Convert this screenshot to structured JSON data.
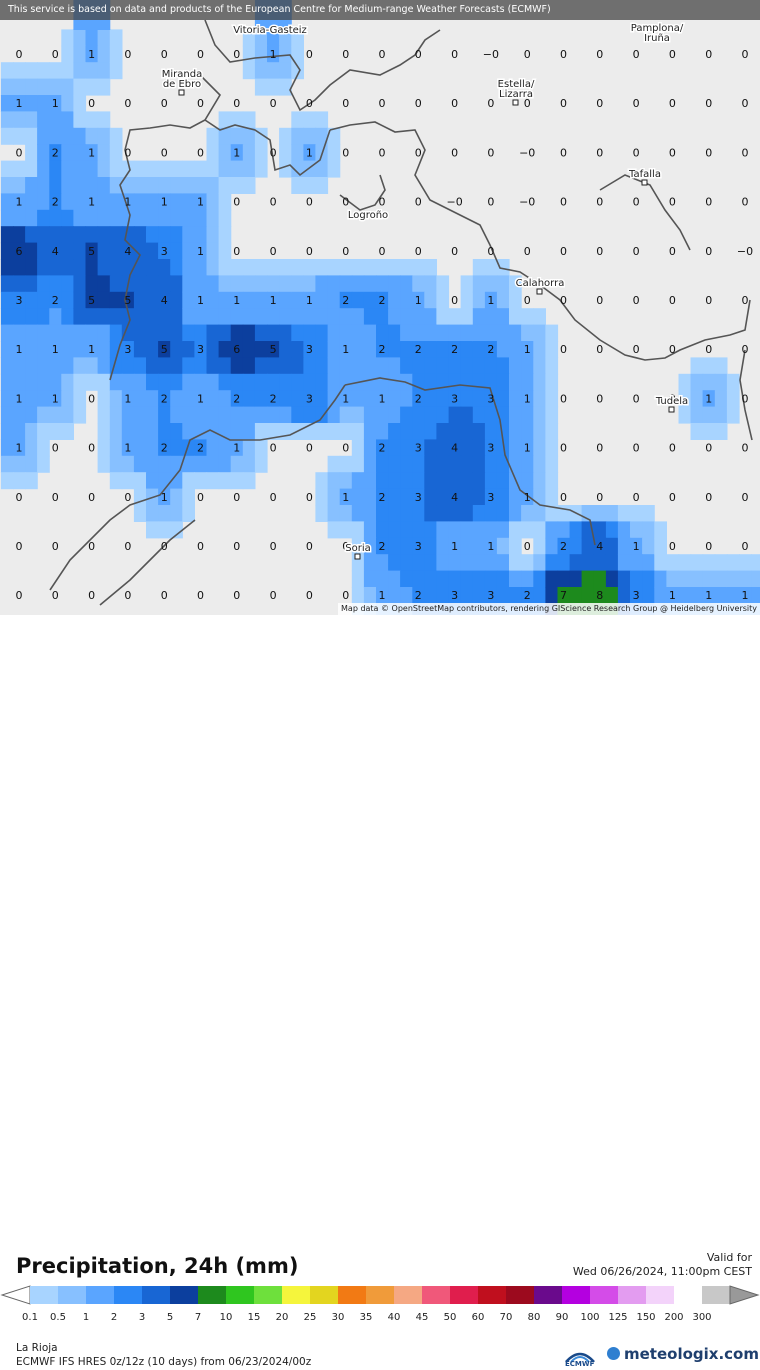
{
  "banner_text": "This service is based on data and products of the European Centre for Medium-range Weather Forecasts (ECMWF)",
  "attribution": "Map data © OpenStreetMap contributors, rendering GIScience Research Group @ Heidelberg University",
  "title": "Precipitation, 24h (mm)",
  "valid_label": "Valid for",
  "valid_date": "Wed 06/26/2024, 11:00pm CEST",
  "region": "La Rioja",
  "model_info": "ECMWF IFS HRES 0z/12z (10 days) from 06/23/2024/00z",
  "brand": "meteologix.com",
  "ecmwf_label": "ECMWF",
  "cities": [
    {
      "name": "Vitoria-Gasteiz"
    },
    {
      "name": "Pamplona/ Iruña"
    },
    {
      "name": "Miranda de Ebro"
    },
    {
      "name": "Estella/ Lizarra"
    },
    {
      "name": "Tafalla"
    },
    {
      "name": "Logroño"
    },
    {
      "name": "Calahorra"
    },
    {
      "name": "Tudela"
    },
    {
      "name": "Soria"
    }
  ],
  "legend": {
    "labels": [
      "0.1",
      "0.5",
      "1",
      "2",
      "3",
      "5",
      "7",
      "10",
      "15",
      "20",
      "25",
      "30",
      "35",
      "40",
      "45",
      "50",
      "60",
      "70",
      "80",
      "90",
      "100",
      "125",
      "150",
      "200",
      "300"
    ],
    "colors": [
      "#a8d4ff",
      "#87c0ff",
      "#5aa5ff",
      "#2b87f5",
      "#1866d4",
      "#0c3f9e",
      "#1d8a1d",
      "#2fc61f",
      "#6ee03c",
      "#f5f53c",
      "#e3d51f",
      "#f27a14",
      "#f09b3a",
      "#f5a883",
      "#f0587a",
      "#e01e4d",
      "#c00f1e",
      "#9c0a1e",
      "#6a0a8c",
      "#b400e0",
      "#d44ce8",
      "#e39cf0",
      "#f3d3fa",
      "#ffffff",
      "#c8c8c8"
    ]
  },
  "chart_data": {
    "type": "heatmap",
    "rows": [
      [
        "0",
        "0",
        "1",
        "0",
        "0",
        "0",
        "0",
        "1",
        "0",
        "0",
        "0",
        "0",
        "0",
        "−0",
        "0",
        "0",
        "0",
        "0",
        "0",
        "0",
        "0"
      ],
      [
        "1",
        "1",
        "0",
        "0",
        "0",
        "0",
        "0",
        "0",
        "0",
        "0",
        "0",
        "0",
        "0",
        "0",
        "0",
        "0",
        "0",
        "0",
        "0",
        "0",
        "0"
      ],
      [
        "0",
        "2",
        "1",
        "0",
        "0",
        "0",
        "1",
        "0",
        "1",
        "0",
        "0",
        "0",
        "0",
        "0",
        "−0",
        "0",
        "0",
        "0",
        "0",
        "0",
        "0"
      ],
      [
        "1",
        "2",
        "1",
        "1",
        "1",
        "1",
        "0",
        "0",
        "0",
        "0",
        "0",
        "0",
        "−0",
        "0",
        "−0",
        "0",
        "0",
        "0",
        "0",
        "0",
        "0"
      ],
      [
        "6",
        "4",
        "5",
        "4",
        "3",
        "1",
        "0",
        "0",
        "0",
        "0",
        "0",
        "0",
        "0",
        "0",
        "0",
        "0",
        "0",
        "0",
        "0",
        "0",
        "−0"
      ],
      [
        "3",
        "2",
        "5",
        "5",
        "4",
        "1",
        "1",
        "1",
        "1",
        "2",
        "2",
        "1",
        "0",
        "1",
        "0",
        "0",
        "0",
        "0",
        "0",
        "0",
        "0"
      ],
      [
        "1",
        "1",
        "1",
        "3",
        "5",
        "3",
        "6",
        "5",
        "3",
        "1",
        "2",
        "2",
        "2",
        "2",
        "1",
        "0",
        "0",
        "0",
        "0",
        "0",
        "0"
      ],
      [
        "1",
        "1",
        "0",
        "1",
        "2",
        "1",
        "2",
        "2",
        "3",
        "1",
        "1",
        "2",
        "3",
        "3",
        "1",
        "0",
        "0",
        "0",
        "0",
        "1",
        "0"
      ],
      [
        "1",
        "0",
        "0",
        "1",
        "2",
        "2",
        "1",
        "0",
        "0",
        "0",
        "2",
        "3",
        "4",
        "3",
        "1",
        "0",
        "0",
        "0",
        "0",
        "0",
        "0"
      ],
      [
        "0",
        "0",
        "0",
        "0",
        "1",
        "0",
        "0",
        "0",
        "0",
        "1",
        "2",
        "3",
        "4",
        "3",
        "1",
        "0",
        "0",
        "0",
        "0",
        "0",
        "0"
      ],
      [
        "0",
        "0",
        "0",
        "0",
        "0",
        "0",
        "0",
        "0",
        "0",
        "0",
        "2",
        "3",
        "1",
        "1",
        "0",
        "2",
        "4",
        "1",
        "0",
        "0",
        "0"
      ],
      [
        "0",
        "0",
        "0",
        "0",
        "0",
        "0",
        "0",
        "0",
        "0",
        "0",
        "1",
        "2",
        "3",
        "3",
        "2",
        "7",
        "8",
        "3",
        "1",
        "1",
        "1"
      ]
    ]
  }
}
